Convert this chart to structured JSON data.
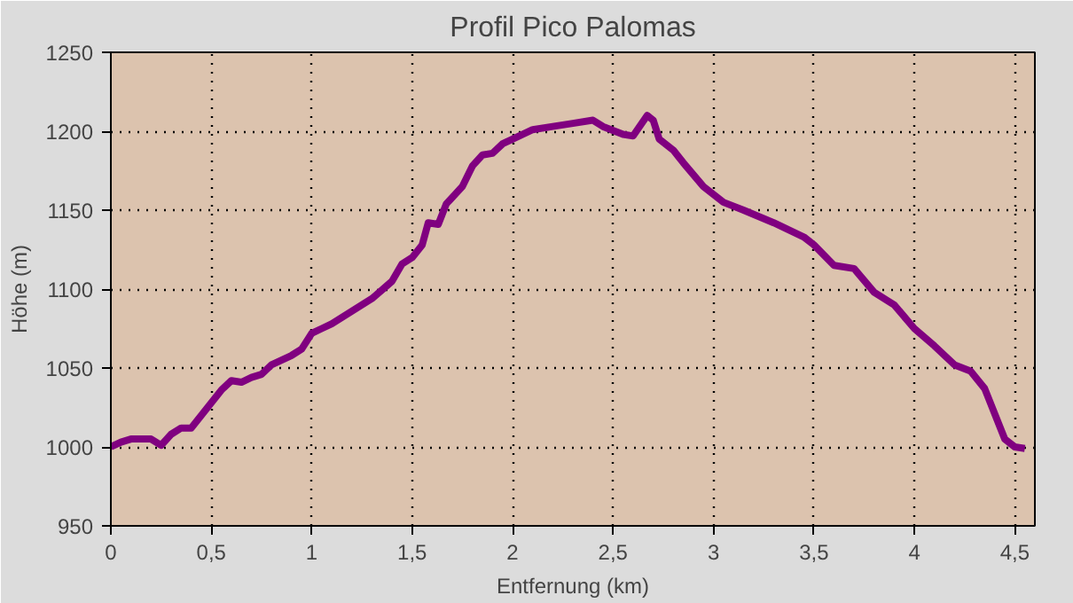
{
  "chart_data": {
    "type": "line",
    "title": "Profil Pico Palomas",
    "xlabel": "Entfernung (km)",
    "ylabel": "Höhe (m)",
    "x": [
      0,
      0.05,
      0.1,
      0.2,
      0.25,
      0.3,
      0.35,
      0.4,
      0.45,
      0.5,
      0.55,
      0.6,
      0.65,
      0.7,
      0.75,
      0.8,
      0.9,
      0.95,
      1.0,
      1.05,
      1.1,
      1.2,
      1.3,
      1.4,
      1.45,
      1.5,
      1.55,
      1.58,
      1.63,
      1.67,
      1.75,
      1.8,
      1.85,
      1.9,
      1.95,
      2.0,
      2.1,
      2.2,
      2.3,
      2.4,
      2.45,
      2.55,
      2.6,
      2.67,
      2.7,
      2.73,
      2.8,
      2.85,
      2.95,
      3.05,
      3.15,
      3.3,
      3.45,
      3.5,
      3.6,
      3.7,
      3.8,
      3.9,
      4.0,
      4.1,
      4.2,
      4.28,
      4.35,
      4.45,
      4.5,
      4.55
    ],
    "series": [
      {
        "color": "#800080",
        "values": [
          1000,
          1003,
          1005,
          1005,
          1001,
          1008,
          1012,
          1012,
          1020,
          1028,
          1036,
          1042,
          1041,
          1044,
          1046,
          1052,
          1058,
          1062,
          1072,
          1075,
          1078,
          1086,
          1094,
          1105,
          1116,
          1120,
          1128,
          1142,
          1141,
          1154,
          1165,
          1178,
          1185,
          1186,
          1192,
          1195,
          1201,
          1203,
          1205,
          1207,
          1203,
          1198,
          1197,
          1210,
          1207,
          1195,
          1188,
          1180,
          1165,
          1155,
          1150,
          1142,
          1133,
          1128,
          1115,
          1113,
          1098,
          1090,
          1075,
          1064,
          1052,
          1048,
          1037,
          1005,
          1000,
          999
        ]
      }
    ],
    "xlim": [
      0,
      4.6
    ],
    "xticks": [
      0,
      {
        "value": 0.5,
        "label": "0,5"
      },
      1,
      {
        "value": 1.5,
        "label": "1,5"
      },
      2,
      {
        "value": 2.5,
        "label": "2,5"
      },
      3,
      {
        "value": 3.5,
        "label": "3,5"
      },
      4,
      {
        "value": 4.5,
        "label": "4,5"
      }
    ],
    "ylim": [
      950,
      1250
    ],
    "yticks": [
      950,
      1000,
      1050,
      1100,
      1150,
      1200,
      1250
    ],
    "grid": true,
    "line_style": "solid",
    "marker": "none"
  }
}
